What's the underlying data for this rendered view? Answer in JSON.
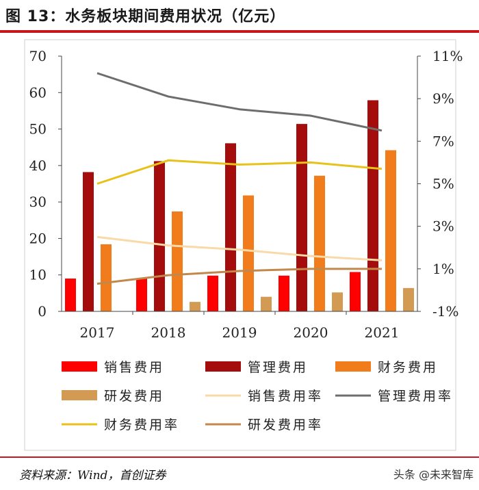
{
  "title": "图 13：水务板块期间费用状况（亿元）",
  "source": "资料来源：Wind，首创证券",
  "watermark": "头条 @未来智库",
  "chart_data": {
    "type": "bar",
    "categories": [
      "2017",
      "2018",
      "2019",
      "2020",
      "2021"
    ],
    "series": [
      {
        "name": "销售费用",
        "kind": "bar",
        "axis": "left",
        "color": "#ff0000",
        "values": [
          9.0,
          9.0,
          9.8,
          9.8,
          10.8
        ]
      },
      {
        "name": "管理费用",
        "kind": "bar",
        "axis": "left",
        "color": "#a50d0d",
        "values": [
          38.2,
          41.2,
          46.1,
          51.4,
          57.9
        ]
      },
      {
        "name": "财务费用",
        "kind": "bar",
        "axis": "left",
        "color": "#f07c1c",
        "values": [
          18.4,
          27.4,
          31.8,
          37.2,
          44.2
        ]
      },
      {
        "name": "研发费用",
        "kind": "bar",
        "axis": "left",
        "color": "#d29a52",
        "values": [
          0,
          2.6,
          4.0,
          5.2,
          6.4
        ]
      },
      {
        "name": "销售费用率",
        "kind": "line",
        "axis": "right",
        "color": "#fad9a8",
        "values": [
          2.5,
          2.1,
          1.9,
          1.6,
          1.4
        ]
      },
      {
        "name": "管理费用率",
        "kind": "line",
        "axis": "right",
        "color": "#6d6d6d",
        "values": [
          10.2,
          9.1,
          8.5,
          8.2,
          7.5
        ]
      },
      {
        "name": "财务费用率",
        "kind": "line",
        "axis": "right",
        "color": "#e6c21a",
        "values": [
          5.0,
          6.1,
          5.9,
          6.0,
          5.7
        ]
      },
      {
        "name": "研发费用率",
        "kind": "line",
        "axis": "right",
        "color": "#c2874a",
        "values": [
          0.3,
          0.7,
          0.9,
          1.0,
          1.0
        ]
      }
    ],
    "left_axis": {
      "min": 0,
      "max": 70,
      "ticks": [
        "0",
        "10",
        "20",
        "30",
        "40",
        "50",
        "60",
        "70"
      ]
    },
    "right_axis": {
      "min": -1,
      "max": 11,
      "ticks": [
        "-1%",
        "1%",
        "3%",
        "5%",
        "7%",
        "9%",
        "11%"
      ]
    },
    "legend": [
      {
        "label": "销售费用",
        "kind": "bar",
        "color": "#ff0000"
      },
      {
        "label": "管理费用",
        "kind": "bar",
        "color": "#a50d0d"
      },
      {
        "label": "财务费用",
        "kind": "bar",
        "color": "#f07c1c"
      },
      {
        "label": "研发费用",
        "kind": "bar",
        "color": "#d29a52"
      },
      {
        "label": "销售费用率",
        "kind": "line",
        "color": "#fad9a8"
      },
      {
        "label": "管理费用率",
        "kind": "line",
        "color": "#6d6d6d"
      },
      {
        "label": "财务费用率",
        "kind": "line",
        "color": "#e6c21a"
      },
      {
        "label": "研发费用率",
        "kind": "line",
        "color": "#c2874a"
      }
    ]
  }
}
